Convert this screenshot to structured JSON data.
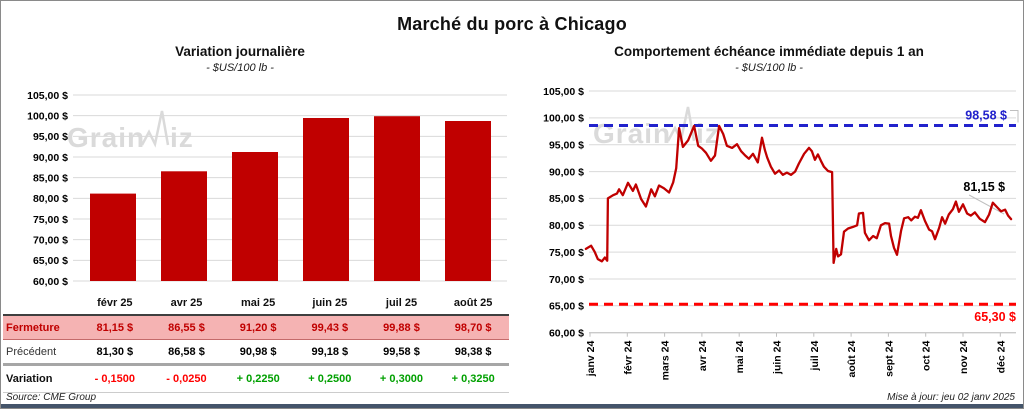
{
  "page_title": "Marché du porc à Chicago",
  "watermark": {
    "part1": "Grain",
    "part2": "iz"
  },
  "colors": {
    "series_red": "#C00000",
    "ref_blue": "#2222CC",
    "ref_red": "#FF0000",
    "negative": "#FF0000",
    "positive": "#00A000",
    "closure_row_bg": "#F5B3B3",
    "bottom_bar": "#44546A"
  },
  "chart_data": [
    {
      "type": "bar",
      "title": "Variation journalière",
      "subtitle": "- $US/100 lb -",
      "categories": [
        "févr 25",
        "avr 25",
        "mai 25",
        "juin 25",
        "juil 25",
        "août 25"
      ],
      "values": [
        81.15,
        86.55,
        91.2,
        99.43,
        99.88,
        98.7
      ],
      "ylim": [
        60,
        105
      ],
      "ytick_step": 5,
      "ytick_labels": [
        "105,00 $",
        "100,00 $",
        "95,00 $",
        "90,00 $",
        "85,00 $",
        "80,00 $",
        "75,00 $",
        "70,00 $",
        "65,00 $",
        "60,00 $"
      ],
      "bar_color": "#C00000",
      "grid": true
    },
    {
      "type": "line",
      "title": "Comportement échéance immédiate depuis 1 an",
      "subtitle": "- $US/100 lb -",
      "x_tick_labels": [
        "janv 24",
        "févr 24",
        "mars 24",
        "avr 24",
        "mai 24",
        "juin 24",
        "juil 24",
        "août 24",
        "sept 24",
        "oct 24",
        "nov 24",
        "déc 24"
      ],
      "ylim": [
        60,
        105
      ],
      "ytick_step": 5,
      "ytick_labels": [
        "105,00 $",
        "100,00 $",
        "95,00 $",
        "90,00 $",
        "85,00 $",
        "80,00 $",
        "75,00 $",
        "70,00 $",
        "65,00 $",
        "60,00 $"
      ],
      "grid": true,
      "ref_lines": [
        {
          "value": 98.58,
          "label": "98,58 $",
          "color": "#2222CC",
          "style": "dashed",
          "label_position": "above"
        },
        {
          "value": 65.3,
          "label": "65,30 $",
          "color": "#FF0000",
          "style": "dashed",
          "label_position": "below"
        }
      ],
      "last_label": "81,15 $",
      "series": [
        {
          "name": "échéance immédiate",
          "color": "#C00000",
          "points": [
            [
              -0.11,
              75.6
            ],
            [
              0.03,
              76.2
            ],
            [
              0.13,
              75.0
            ],
            [
              0.21,
              73.7
            ],
            [
              0.32,
              73.3
            ],
            [
              0.4,
              74.0
            ],
            [
              0.46,
              73.4
            ],
            [
              0.48,
              85.0
            ],
            [
              0.62,
              85.6
            ],
            [
              0.72,
              85.9
            ],
            [
              0.78,
              86.7
            ],
            [
              0.88,
              85.6
            ],
            [
              1.02,
              87.9
            ],
            [
              1.15,
              86.4
            ],
            [
              1.23,
              87.6
            ],
            [
              1.37,
              84.9
            ],
            [
              1.5,
              83.5
            ],
            [
              1.64,
              86.7
            ],
            [
              1.74,
              85.4
            ],
            [
              1.85,
              87.4
            ],
            [
              1.98,
              86.9
            ],
            [
              2.12,
              86.1
            ],
            [
              2.23,
              88.0
            ],
            [
              2.31,
              90.6
            ],
            [
              2.39,
              98.1
            ],
            [
              2.49,
              94.6
            ],
            [
              2.63,
              95.8
            ],
            [
              2.79,
              98.5
            ],
            [
              2.9,
              94.8
            ],
            [
              3.0,
              94.3
            ],
            [
              3.11,
              93.5
            ],
            [
              3.24,
              92.0
            ],
            [
              3.35,
              93.0
            ],
            [
              3.46,
              98.5
            ],
            [
              3.57,
              97.0
            ],
            [
              3.67,
              94.8
            ],
            [
              3.81,
              94.4
            ],
            [
              3.94,
              95.1
            ],
            [
              4.05,
              93.8
            ],
            [
              4.16,
              93.0
            ],
            [
              4.26,
              92.4
            ],
            [
              4.37,
              93.3
            ],
            [
              4.5,
              91.7
            ],
            [
              4.61,
              96.3
            ],
            [
              4.69,
              94.0
            ],
            [
              4.75,
              92.6
            ],
            [
              4.85,
              90.9
            ],
            [
              4.96,
              89.6
            ],
            [
              5.07,
              90.2
            ],
            [
              5.17,
              89.4
            ],
            [
              5.28,
              89.8
            ],
            [
              5.39,
              89.4
            ],
            [
              5.5,
              90.0
            ],
            [
              5.6,
              91.5
            ],
            [
              5.74,
              93.3
            ],
            [
              5.87,
              94.4
            ],
            [
              5.95,
              93.8
            ],
            [
              6.03,
              92.2
            ],
            [
              6.11,
              93.2
            ],
            [
              6.19,
              92.0
            ],
            [
              6.27,
              90.9
            ],
            [
              6.38,
              90.1
            ],
            [
              6.49,
              89.9
            ],
            [
              6.53,
              73.0
            ],
            [
              6.6,
              75.6
            ],
            [
              6.65,
              74.2
            ],
            [
              6.73,
              74.6
            ],
            [
              6.81,
              78.8
            ],
            [
              6.92,
              79.4
            ],
            [
              7.05,
              79.7
            ],
            [
              7.16,
              80.0
            ],
            [
              7.21,
              82.2
            ],
            [
              7.32,
              82.3
            ],
            [
              7.37,
              78.6
            ],
            [
              7.48,
              77.2
            ],
            [
              7.59,
              78.0
            ],
            [
              7.69,
              77.6
            ],
            [
              7.8,
              80.0
            ],
            [
              7.91,
              80.4
            ],
            [
              8.02,
              80.3
            ],
            [
              8.07,
              78.0
            ],
            [
              8.15,
              75.8
            ],
            [
              8.23,
              74.5
            ],
            [
              8.34,
              79.0
            ],
            [
              8.42,
              81.3
            ],
            [
              8.53,
              81.5
            ],
            [
              8.61,
              80.9
            ],
            [
              8.71,
              81.6
            ],
            [
              8.79,
              81.4
            ],
            [
              8.87,
              82.8
            ],
            [
              8.98,
              80.8
            ],
            [
              9.09,
              79.2
            ],
            [
              9.17,
              78.9
            ],
            [
              9.25,
              77.4
            ],
            [
              9.36,
              79.5
            ],
            [
              9.44,
              81.5
            ],
            [
              9.52,
              80.3
            ],
            [
              9.62,
              82.0
            ],
            [
              9.73,
              83.0
            ],
            [
              9.81,
              84.4
            ],
            [
              9.89,
              82.5
            ],
            [
              10.0,
              83.9
            ],
            [
              10.11,
              82.2
            ],
            [
              10.21,
              81.8
            ],
            [
              10.32,
              82.4
            ],
            [
              10.45,
              81.2
            ],
            [
              10.59,
              80.6
            ],
            [
              10.7,
              82.0
            ],
            [
              10.8,
              84.2
            ],
            [
              10.91,
              83.4
            ],
            [
              11.02,
              82.6
            ],
            [
              11.13,
              82.9
            ],
            [
              11.21,
              81.8
            ],
            [
              11.29,
              81.15
            ]
          ]
        }
      ]
    }
  ],
  "table": {
    "rows": [
      {
        "kind": "fermeture",
        "label": "Fermeture",
        "values": [
          "81,15 $",
          "86,55 $",
          "91,20 $",
          "99,43 $",
          "99,88 $",
          "98,70 $"
        ]
      },
      {
        "kind": "precedent",
        "label": "Précédent",
        "values": [
          "81,30 $",
          "86,58 $",
          "90,98 $",
          "99,18 $",
          "99,58 $",
          "98,38 $"
        ]
      },
      {
        "kind": "variation",
        "label": "Variation",
        "values": [
          "- 0,1500",
          "- 0,0250",
          "+ 0,2250",
          "+ 0,2500",
          "+ 0,3000",
          "+ 0,3250"
        ]
      }
    ]
  },
  "footer": {
    "source": "Source: CME Group",
    "updated": "Mise à jour: jeu 02 janv 2025"
  }
}
